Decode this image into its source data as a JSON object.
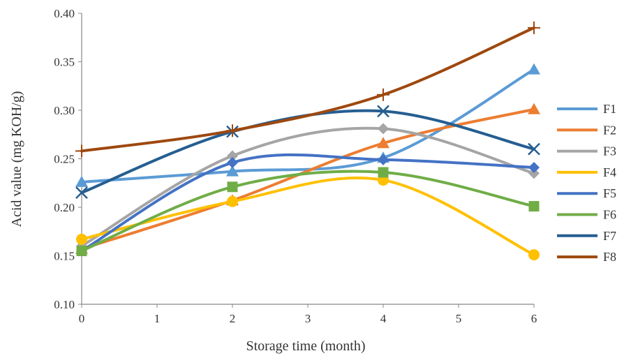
{
  "chart_data": {
    "type": "line",
    "xlabel": "Storage time (month)",
    "ylabel": "Acid value (mg KOH/g)",
    "xlim": [
      0,
      6
    ],
    "ylim": [
      0.1,
      0.4
    ],
    "x_ticks": [
      "0",
      "1",
      "2",
      "3",
      "4",
      "5",
      "6"
    ],
    "y_ticks": [
      "0.10",
      "0.15",
      "0.20",
      "0.25",
      "0.30",
      "0.35",
      "0.40"
    ],
    "grid": false,
    "legend_position": "right",
    "smooth": true,
    "x": [
      0,
      2,
      4,
      6
    ],
    "series": [
      {
        "name": "F1",
        "values": [
          0.226,
          0.237,
          0.251,
          0.342
        ],
        "color": "#5B9BD5",
        "marker": "triangle"
      },
      {
        "name": "F2",
        "values": [
          0.157,
          0.207,
          0.266,
          0.301
        ],
        "color": "#ED7D31",
        "marker": "triangle"
      },
      {
        "name": "F3",
        "values": [
          0.16,
          0.253,
          0.281,
          0.235
        ],
        "color": "#A5A5A5",
        "marker": "diamond"
      },
      {
        "name": "F4",
        "values": [
          0.167,
          0.206,
          0.228,
          0.151
        ],
        "color": "#FFC000",
        "marker": "circle"
      },
      {
        "name": "F5",
        "values": [
          0.155,
          0.246,
          0.249,
          0.241
        ],
        "color": "#4472C4",
        "marker": "diamond"
      },
      {
        "name": "F6",
        "values": [
          0.155,
          0.221,
          0.236,
          0.201
        ],
        "color": "#70AD47",
        "marker": "square"
      },
      {
        "name": "F7",
        "values": [
          0.215,
          0.278,
          0.299,
          0.26
        ],
        "color": "#255E91",
        "marker": "x"
      },
      {
        "name": "F8",
        "values": [
          0.258,
          0.279,
          0.316,
          0.385
        ],
        "color": "#9E480E",
        "marker": "plus"
      }
    ]
  }
}
